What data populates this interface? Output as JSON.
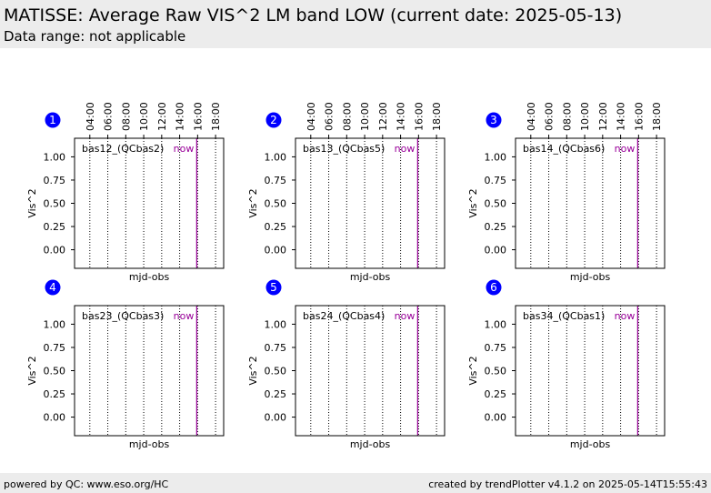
{
  "header": {
    "title": "MATISSE: Average Raw VIS^2 LM band LOW (current date: 2025-05-13)",
    "subtitle": "Data range: not applicable"
  },
  "footer": {
    "left": "powered by QC: www.eso.org/HC",
    "right": "created by trendPlotter v4.1.2 on 2025-05-14T15:55:43"
  },
  "colors": {
    "now_line": "#990099",
    "badge": "#0000ff",
    "header_bg": "#ececec"
  },
  "chart_data": [
    {
      "type": "line",
      "index": "1",
      "title": "bas12_(QCbas2)",
      "now_label": "now",
      "xlabel": "mjd-obs",
      "ylabel": "Vis^2",
      "x_ticks": [
        "04:00",
        "06:00",
        "08:00",
        "10:00",
        "12:00",
        "14:00",
        "16:00",
        "18:00"
      ],
      "y_ticks": [
        "1.00",
        "0.75",
        "0.50",
        "0.25",
        "0.00"
      ],
      "ylim": [
        -0.2,
        1.2
      ],
      "xlim": [
        2.3,
        18.9
      ],
      "now_x": 15.9,
      "series": []
    },
    {
      "type": "line",
      "index": "2",
      "title": "bas13_(QCbas5)",
      "now_label": "now",
      "xlabel": "mjd-obs",
      "ylabel": "Vis^2",
      "x_ticks": [
        "04:00",
        "06:00",
        "08:00",
        "10:00",
        "12:00",
        "14:00",
        "16:00",
        "18:00"
      ],
      "y_ticks": [
        "1.00",
        "0.75",
        "0.50",
        "0.25",
        "0.00"
      ],
      "ylim": [
        -0.2,
        1.2
      ],
      "xlim": [
        2.3,
        18.9
      ],
      "now_x": 15.9,
      "series": []
    },
    {
      "type": "line",
      "index": "3",
      "title": "bas14_(QCbas6)",
      "now_label": "now",
      "xlabel": "mjd-obs",
      "ylabel": "Vis^2",
      "x_ticks": [
        "04:00",
        "06:00",
        "08:00",
        "10:00",
        "12:00",
        "14:00",
        "16:00",
        "18:00"
      ],
      "y_ticks": [
        "1.00",
        "0.75",
        "0.50",
        "0.25",
        "0.00"
      ],
      "ylim": [
        -0.2,
        1.2
      ],
      "xlim": [
        2.3,
        18.9
      ],
      "now_x": 15.9,
      "series": []
    },
    {
      "type": "line",
      "index": "4",
      "title": "bas23_(QCbas3)",
      "now_label": "now",
      "xlabel": "mjd-obs",
      "ylabel": "Vis^2",
      "x_ticks": [],
      "y_ticks": [
        "1.00",
        "0.75",
        "0.50",
        "0.25",
        "0.00"
      ],
      "ylim": [
        -0.2,
        1.2
      ],
      "xlim": [
        2.3,
        18.9
      ],
      "now_x": 15.9,
      "series": []
    },
    {
      "type": "line",
      "index": "5",
      "title": "bas24_(QCbas4)",
      "now_label": "now",
      "xlabel": "mjd-obs",
      "ylabel": "Vis^2",
      "x_ticks": [],
      "y_ticks": [
        "1.00",
        "0.75",
        "0.50",
        "0.25",
        "0.00"
      ],
      "ylim": [
        -0.2,
        1.2
      ],
      "xlim": [
        2.3,
        18.9
      ],
      "now_x": 15.9,
      "series": []
    },
    {
      "type": "line",
      "index": "6",
      "title": "bas34_(QCbas1)",
      "now_label": "now",
      "xlabel": "mjd-obs",
      "ylabel": "Vis^2",
      "x_ticks": [],
      "y_ticks": [
        "1.00",
        "0.75",
        "0.50",
        "0.25",
        "0.00"
      ],
      "ylim": [
        -0.2,
        1.2
      ],
      "xlim": [
        2.3,
        18.9
      ],
      "now_x": 15.9,
      "series": []
    }
  ]
}
